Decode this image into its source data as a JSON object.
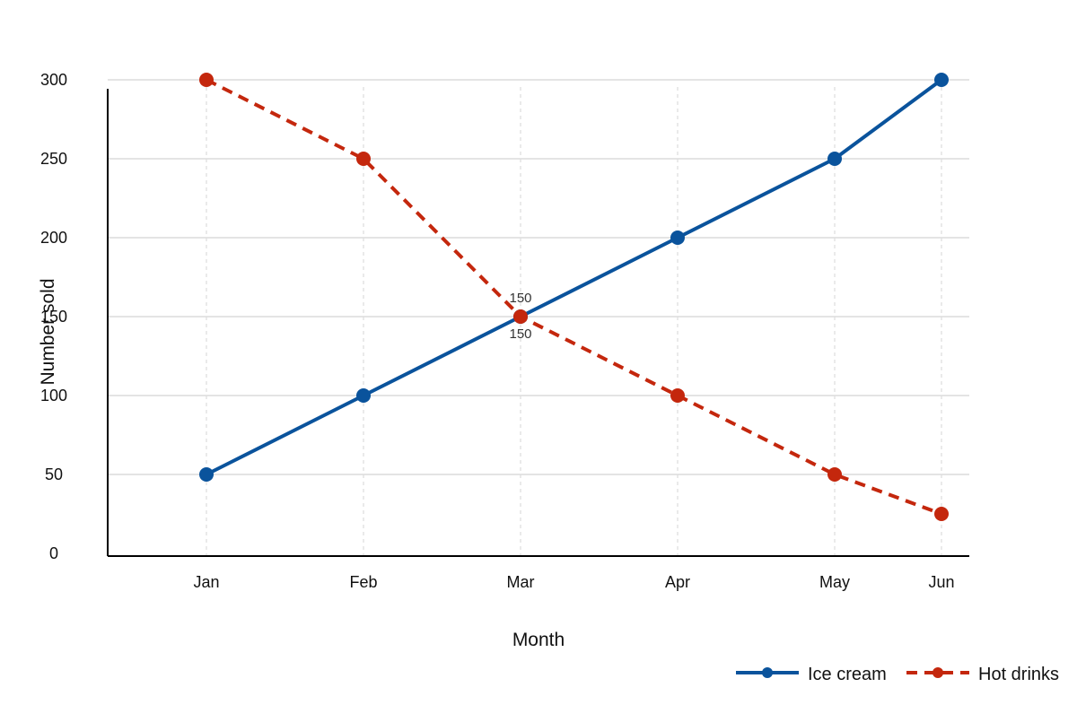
{
  "chart_data": {
    "type": "line",
    "title": "",
    "xlabel": "Month",
    "ylabel": "Number sold",
    "categories": [
      "Jan",
      "Feb",
      "Mar",
      "Apr",
      "May",
      "Jun"
    ],
    "x_values": [
      1,
      2,
      3,
      4,
      5,
      5.68
    ],
    "ylim": [
      0,
      300
    ],
    "yticks": [
      0,
      50,
      100,
      150,
      200,
      250,
      300
    ],
    "grid": true,
    "legend_position": "bottom-right",
    "series": [
      {
        "name": "Ice cream",
        "values": [
          50,
          100,
          150,
          200,
          250,
          300
        ],
        "color": "#0a539c",
        "style": "solid",
        "marker": "circle"
      },
      {
        "name": "Hot drinks",
        "values": [
          300,
          250,
          150,
          100,
          50,
          25
        ],
        "color": "#c4270d",
        "style": "dashed",
        "marker": "circle"
      }
    ],
    "annotations": [
      {
        "series": "Hot drinks",
        "category": "Mar",
        "text": "150",
        "placement": "above"
      },
      {
        "series": "Ice cream",
        "category": "Mar",
        "text": "150",
        "placement": "below"
      }
    ]
  }
}
